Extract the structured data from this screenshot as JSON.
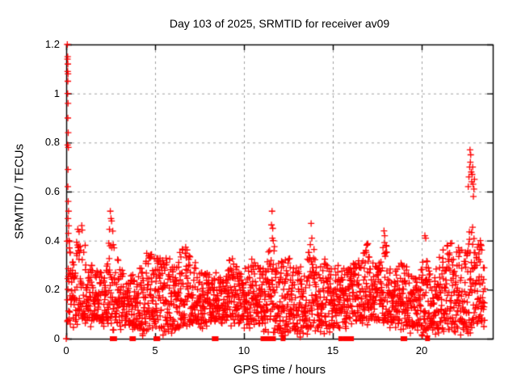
{
  "colors": {
    "marker": "#ff0000",
    "grid": "#a0a0a0",
    "axis": "#000000",
    "background": "#ffffff",
    "text": "#000000"
  },
  "chart_data": {
    "type": "scatter",
    "title": "Day 103 of 2025, SRMTID for receiver av09",
    "xlabel": "GPS time / hours",
    "ylabel": "SRMTID / TECUs",
    "xlim": [
      0,
      24
    ],
    "ylim": [
      0,
      1.2
    ],
    "xticks": [
      0,
      5,
      10,
      15,
      20
    ],
    "xtick_labels": [
      "0",
      "5",
      "10",
      "15",
      "20"
    ],
    "yticks": [
      0,
      0.2,
      0.4,
      0.6,
      0.8,
      1,
      1.2
    ],
    "ytick_labels": [
      "0",
      "0.2",
      "0.4",
      "0.6",
      "0.8",
      "1",
      "1.2"
    ],
    "grid": true,
    "legend": "none",
    "marker": {
      "shape": "plus",
      "size": 8
    },
    "series_name": "SRMTID",
    "scatter_model": {
      "comment": "dense + markers: band ~0.05-0.30 all day with quasi-periodic bumps; bumps = [hour, peak_TECU, width_h]",
      "seed": 103,
      "points_per_hour": 100,
      "x_start": 0.05,
      "x_end": 23.55,
      "band_floor": 0.055,
      "band_top_base": 0.27,
      "band_skew": 1.25,
      "bumps": [
        [
          0.12,
          0.46,
          0.08
        ],
        [
          0.8,
          0.47,
          0.22
        ],
        [
          1.6,
          0.3,
          0.3
        ],
        [
          2.5,
          0.52,
          0.13
        ],
        [
          2.9,
          0.35,
          0.2
        ],
        [
          3.9,
          0.3,
          0.3
        ],
        [
          4.7,
          0.37,
          0.22
        ],
        [
          5.5,
          0.33,
          0.3
        ],
        [
          6.6,
          0.37,
          0.22
        ],
        [
          7.1,
          0.33,
          0.18
        ],
        [
          7.7,
          0.3,
          0.25
        ],
        [
          8.6,
          0.3,
          0.25
        ],
        [
          9.3,
          0.35,
          0.2
        ],
        [
          10.3,
          0.33,
          0.35
        ],
        [
          11.6,
          0.45,
          0.15
        ],
        [
          12.4,
          0.33,
          0.25
        ],
        [
          13.2,
          0.3,
          0.25
        ],
        [
          13.8,
          0.42,
          0.18
        ],
        [
          14.5,
          0.35,
          0.25
        ],
        [
          15.3,
          0.32,
          0.25
        ],
        [
          16.2,
          0.3,
          0.25
        ],
        [
          16.9,
          0.37,
          0.22
        ],
        [
          17.9,
          0.4,
          0.15
        ],
        [
          19.0,
          0.33,
          0.25
        ],
        [
          20.2,
          0.36,
          0.18
        ],
        [
          21.3,
          0.38,
          0.35
        ],
        [
          22.0,
          0.37,
          0.3
        ],
        [
          22.8,
          0.45,
          0.18
        ],
        [
          23.3,
          0.38,
          0.15
        ]
      ]
    },
    "outlier_points": [
      [
        0.06,
        1.2
      ],
      [
        0.08,
        1.15
      ],
      [
        0.07,
        1.14
      ],
      [
        0.09,
        1.12
      ],
      [
        0.08,
        1.09
      ],
      [
        0.1,
        1.08
      ],
      [
        0.09,
        1.05
      ],
      [
        0.08,
        1.0
      ],
      [
        0.1,
        0.96
      ],
      [
        0.09,
        0.9
      ],
      [
        0.11,
        0.84
      ],
      [
        0.08,
        0.79
      ],
      [
        0.12,
        0.78
      ],
      [
        0.1,
        0.69
      ],
      [
        0.09,
        0.62
      ],
      [
        0.11,
        0.56
      ],
      [
        0.13,
        0.52
      ],
      [
        0.1,
        0.49
      ],
      [
        0.14,
        0.46
      ],
      [
        0.12,
        0.43
      ],
      [
        0.15,
        0.4
      ],
      [
        0.18,
        0.37
      ],
      [
        0.22,
        0.35
      ],
      [
        2.48,
        0.52
      ],
      [
        2.52,
        0.49
      ],
      [
        11.58,
        0.52
      ],
      [
        11.62,
        0.45
      ],
      [
        11.6,
        0.41
      ],
      [
        11.65,
        0.4
      ],
      [
        13.78,
        0.47
      ],
      [
        13.82,
        0.41
      ],
      [
        17.88,
        0.44
      ],
      [
        17.92,
        0.42
      ],
      [
        20.18,
        0.42
      ],
      [
        20.23,
        0.41
      ],
      [
        22.62,
        0.62
      ],
      [
        22.66,
        0.66
      ],
      [
        22.7,
        0.7
      ],
      [
        22.72,
        0.77
      ],
      [
        22.74,
        0.72
      ],
      [
        22.76,
        0.75
      ],
      [
        22.79,
        0.68
      ],
      [
        22.81,
        0.64
      ],
      [
        22.84,
        0.67
      ],
      [
        22.87,
        0.7
      ],
      [
        22.89,
        0.63
      ],
      [
        22.91,
        0.58
      ],
      [
        22.94,
        0.61
      ],
      [
        22.97,
        0.65
      ],
      [
        23.3,
        0.4
      ],
      [
        23.35,
        0.38
      ]
    ],
    "zero_markers": {
      "shape": "filled-square",
      "x": [
        2.59,
        2.72,
        3.7,
        3.78,
        5.05,
        5.15,
        8.33,
        8.43,
        11.07,
        11.17,
        11.35,
        11.57,
        11.66,
        12.2,
        15.45,
        15.72,
        15.95,
        16.05,
        18.95,
        19.05,
        20.33
      ]
    },
    "zero_plus_markers": [
      0.0
    ]
  }
}
